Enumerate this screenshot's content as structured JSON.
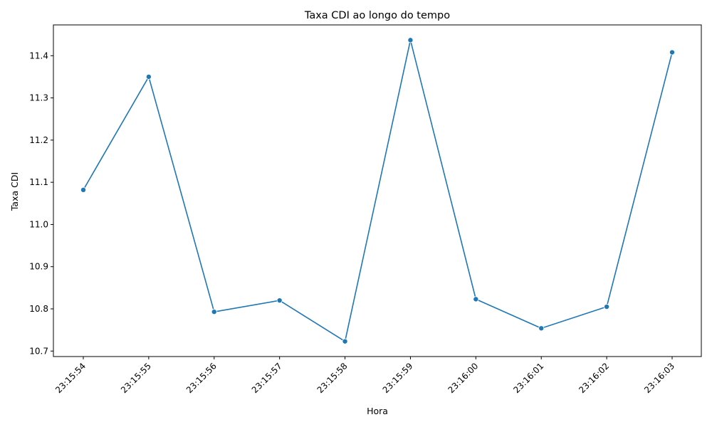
{
  "chart_data": {
    "type": "line",
    "title": "Taxa CDI ao longo do tempo",
    "xlabel": "Hora",
    "ylabel": "Taxa CDI",
    "categories": [
      "23:15:54",
      "23:15:55",
      "23:15:56",
      "23:15:57",
      "23:15:58",
      "23:15:59",
      "23:16:00",
      "23:16:01",
      "23:16:02",
      "23:16:03"
    ],
    "series": [
      {
        "values": [
          11.082,
          11.35,
          10.793,
          10.82,
          10.723,
          11.437,
          10.823,
          10.754,
          10.805,
          11.408
        ],
        "color": "#1f77b4",
        "marker": "circle"
      }
    ],
    "ylim": [
      10.687,
      11.473
    ],
    "yticks": [
      10.7,
      10.8,
      10.9,
      11.0,
      11.1,
      11.2,
      11.3,
      11.4
    ],
    "xtick_rotation": 45,
    "grid": false,
    "legend": "none"
  }
}
